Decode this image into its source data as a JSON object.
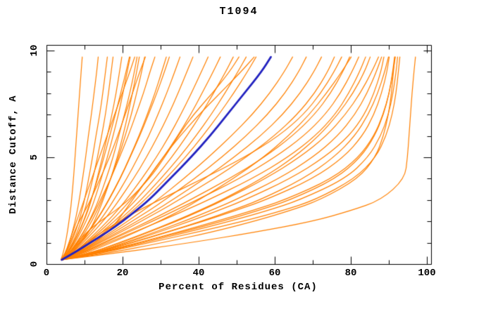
{
  "chart_data": {
    "type": "line",
    "title": "T1094",
    "xlabel": "Percent of Residues (CA)",
    "ylabel": "Distance Cutoff, A",
    "xlim": [
      0,
      101
    ],
    "ylim": [
      0,
      10.3
    ],
    "x_major_ticks": [
      0,
      20,
      40,
      60,
      80,
      100
    ],
    "x_minor_ticks": [
      10,
      30,
      50,
      70,
      90
    ],
    "y_major_ticks": [
      0,
      5,
      10
    ],
    "y_minor_ticks": [
      1,
      2,
      3,
      4,
      6,
      7,
      8,
      9
    ],
    "grid": "off",
    "legend": "none",
    "colors": {
      "model_line": "#ff8000",
      "highlight_line": "#2222c0",
      "axis": "#000000",
      "background": "#ffffff"
    },
    "distance_grid": [
      0.2,
      0.5,
      1,
      1.5,
      2,
      2.5,
      3,
      4,
      5,
      6,
      7,
      8,
      9,
      9.7
    ],
    "highlight_series": {
      "name": "highlighted-model",
      "values": [
        4.0,
        7.0,
        11.5,
        16.0,
        20.0,
        23.5,
        27.0,
        32.5,
        38.0,
        43.0,
        47.5,
        52.0,
        56.5,
        59.0
      ]
    },
    "series": [
      {
        "name": "model-01",
        "values": [
          3.8,
          4.4,
          5.0,
          5.5,
          5.9,
          6.3,
          6.6,
          7.1,
          7.5,
          7.9,
          8.3,
          8.7,
          9.1,
          9.4
        ]
      },
      {
        "name": "model-02",
        "values": [
          4.0,
          5.0,
          6.0,
          6.8,
          7.5,
          8.1,
          8.6,
          9.5,
          10.3,
          11.0,
          11.8,
          12.5,
          13.2,
          13.6
        ]
      },
      {
        "name": "model-03",
        "values": [
          4.0,
          5.1,
          6.5,
          7.6,
          8.5,
          9.3,
          10.0,
          11.1,
          12.1,
          13.0,
          14.0,
          14.8,
          15.5,
          16.0
        ]
      },
      {
        "name": "model-04",
        "values": [
          4.1,
          5.3,
          6.9,
          8.1,
          9.1,
          10.0,
          10.8,
          12.2,
          13.4,
          14.5,
          15.5,
          16.3,
          17.0,
          17.5
        ]
      },
      {
        "name": "model-05",
        "values": [
          3.9,
          5.5,
          7.2,
          8.6,
          9.8,
          10.9,
          11.8,
          13.3,
          14.7,
          16.0,
          17.2,
          18.3,
          19.2,
          19.8
        ]
      },
      {
        "name": "model-06",
        "values": [
          4.0,
          5.6,
          7.5,
          9.0,
          10.4,
          11.6,
          12.6,
          14.4,
          16.0,
          17.5,
          18.9,
          20.1,
          21.2,
          22.0
        ]
      },
      {
        "name": "model-07",
        "values": [
          4.2,
          6.0,
          8.0,
          9.8,
          11.2,
          12.5,
          13.7,
          15.7,
          17.5,
          19.0,
          20.5,
          21.9,
          23.1,
          23.8
        ]
      },
      {
        "name": "model-08",
        "values": [
          4.0,
          6.1,
          8.3,
          10.2,
          11.9,
          13.3,
          14.6,
          16.9,
          18.9,
          20.7,
          22.3,
          23.7,
          25.0,
          25.8
        ]
      },
      {
        "name": "model-09",
        "values": [
          3.8,
          5.0,
          6.2,
          7.3,
          8.6,
          10.1,
          11.6,
          14.1,
          16.6,
          18.7,
          20.7,
          22.6,
          24.5,
          26.0
        ]
      },
      {
        "name": "model-10",
        "values": [
          4.3,
          6.6,
          9.1,
          11.1,
          12.6,
          13.8,
          14.9,
          16.9,
          18.6,
          20.1,
          21.4,
          22.6,
          23.7,
          24.4
        ]
      },
      {
        "name": "model-11",
        "values": [
          3.9,
          4.9,
          5.9,
          6.9,
          7.9,
          8.9,
          9.9,
          11.9,
          13.9,
          15.9,
          17.9,
          19.9,
          21.9,
          23.2
        ]
      },
      {
        "name": "model-12",
        "values": [
          4.1,
          5.5,
          7.1,
          8.5,
          9.7,
          10.7,
          11.7,
          13.5,
          15.1,
          16.6,
          18.1,
          19.5,
          20.9,
          21.8
        ]
      },
      {
        "name": "model-13",
        "values": [
          4.0,
          6.2,
          8.8,
          11.0,
          13.0,
          14.8,
          16.4,
          19.4,
          22.0,
          24.5,
          26.8,
          29.0,
          31.0,
          32.3
        ]
      },
      {
        "name": "model-14",
        "values": [
          4.0,
          5.9,
          7.9,
          9.7,
          11.3,
          12.8,
          14.2,
          16.9,
          19.2,
          21.5,
          23.5,
          25.5,
          27.2,
          28.5
        ]
      },
      {
        "name": "model-15",
        "values": [
          4.0,
          6.1,
          8.6,
          10.9,
          12.9,
          14.7,
          16.3,
          19.3,
          21.9,
          24.3,
          26.5,
          28.5,
          30.3,
          31.5
        ]
      },
      {
        "name": "model-16",
        "values": [
          4.2,
          6.4,
          9.1,
          11.6,
          13.9,
          15.9,
          17.7,
          21.1,
          24.1,
          26.9,
          29.3,
          31.6,
          33.7,
          35.1
        ]
      },
      {
        "name": "model-17",
        "values": [
          4.0,
          6.6,
          9.6,
          12.3,
          14.8,
          17.1,
          19.1,
          22.9,
          26.3,
          29.3,
          32.1,
          34.6,
          36.9,
          38.5
        ]
      },
      {
        "name": "model-18",
        "values": [
          4.1,
          7.0,
          10.2,
          13.2,
          16.0,
          18.6,
          20.9,
          25.1,
          28.9,
          32.3,
          35.3,
          38.1,
          40.7,
          42.5
        ]
      },
      {
        "name": "model-19",
        "values": [
          4.0,
          7.1,
          10.6,
          13.9,
          16.9,
          19.6,
          22.1,
          26.7,
          30.7,
          34.5,
          37.9,
          40.9,
          43.8,
          45.7
        ]
      },
      {
        "name": "model-20",
        "values": [
          4.3,
          7.4,
          11.1,
          14.6,
          17.8,
          20.8,
          23.5,
          28.5,
          32.9,
          36.9,
          40.6,
          43.9,
          47.1,
          49.1
        ]
      },
      {
        "name": "model-21",
        "values": [
          4.0,
          7.5,
          11.6,
          15.3,
          18.7,
          21.9,
          24.8,
          30.1,
          34.9,
          39.3,
          43.3,
          46.9,
          50.3,
          52.5
        ]
      },
      {
        "name": "model-22",
        "values": [
          4.1,
          7.7,
          11.9,
          15.8,
          19.4,
          22.7,
          25.8,
          31.4,
          36.5,
          41.1,
          45.3,
          49.2,
          52.8,
          55.1
        ]
      },
      {
        "name": "model-23",
        "values": [
          3.9,
          6.0,
          8.1,
          10.6,
          14.1,
          18.1,
          21.6,
          27.1,
          31.1,
          34.6,
          38.6,
          43.6,
          48.1,
          50.6
        ]
      },
      {
        "name": "model-24",
        "values": [
          4.2,
          8.1,
          12.6,
          16.1,
          18.6,
          20.6,
          22.6,
          26.6,
          30.6,
          35.1,
          40.1,
          45.6,
          51.1,
          54.6
        ]
      },
      {
        "name": "model-25",
        "values": [
          4.0,
          7.9,
          12.6,
          17.1,
          21.3,
          25.3,
          29.1,
          36.1,
          42.6,
          48.6,
          54.1,
          58.7,
          62.5,
          64.7
        ]
      },
      {
        "name": "model-26",
        "values": [
          4.1,
          8.1,
          13.1,
          17.9,
          22.5,
          26.9,
          31.1,
          38.9,
          46.1,
          52.5,
          58.1,
          62.7,
          66.3,
          68.3
        ]
      },
      {
        "name": "model-27",
        "values": [
          4.0,
          8.3,
          13.6,
          18.8,
          23.8,
          28.6,
          33.1,
          41.6,
          49.3,
          56.3,
          62.1,
          66.7,
          70.3,
          72.3
        ]
      },
      {
        "name": "model-28",
        "values": [
          4.2,
          8.6,
          14.1,
          19.6,
          24.9,
          29.9,
          34.8,
          44.1,
          52.5,
          59.9,
          65.9,
          70.5,
          73.9,
          75.7
        ]
      },
      {
        "name": "model-29",
        "values": [
          3.9,
          7.1,
          10.6,
          14.6,
          19.1,
          24.1,
          29.6,
          41.1,
          52.1,
          61.1,
          67.6,
          72.1,
          75.6,
          77.6
        ]
      },
      {
        "name": "model-30",
        "values": [
          4.0,
          8.9,
          14.9,
          20.9,
          26.7,
          32.3,
          37.7,
          48.1,
          57.3,
          64.7,
          70.5,
          74.7,
          77.9,
          79.7
        ]
      },
      {
        "name": "model-31",
        "values": [
          4.1,
          9.1,
          15.3,
          21.6,
          27.8,
          33.7,
          39.5,
          50.7,
          60.1,
          67.7,
          73.3,
          77.3,
          80.3,
          82.1
        ]
      },
      {
        "name": "model-32",
        "values": [
          4.0,
          10.1,
          17.1,
          23.6,
          29.6,
          35.1,
          40.1,
          49.1,
          57.1,
          63.6,
          69.1,
          73.6,
          77.6,
          80.1
        ]
      },
      {
        "name": "model-33",
        "values": [
          4.2,
          9.4,
          16.1,
          23.1,
          29.8,
          36.3,
          42.5,
          54.1,
          63.5,
          70.7,
          75.9,
          79.5,
          82.3,
          83.9
        ]
      },
      {
        "name": "model-34",
        "values": [
          4.0,
          11.1,
          19.1,
          26.6,
          33.6,
          40.1,
          46.1,
          56.6,
          65.1,
          71.6,
          76.6,
          80.6,
          83.6,
          85.1
        ]
      },
      {
        "name": "model-35",
        "values": [
          4.1,
          12.1,
          21.1,
          29.6,
          37.6,
          45.1,
          52.1,
          64.1,
          73.1,
          79.6,
          83.6,
          86.1,
          87.9,
          88.7
        ]
      },
      {
        "name": "model-36",
        "values": [
          4.0,
          12.6,
          22.6,
          32.1,
          41.1,
          49.6,
          57.6,
          70.1,
          78.1,
          83.1,
          86.1,
          88.1,
          89.5,
          90.1
        ]
      },
      {
        "name": "model-37",
        "values": [
          4.2,
          13.1,
          24.1,
          34.6,
          44.6,
          54.1,
          62.6,
          75.1,
          82.1,
          86.1,
          88.5,
          90.1,
          91.1,
          91.7
        ]
      },
      {
        "name": "model-38",
        "values": [
          4.0,
          13.6,
          25.6,
          37.1,
          48.1,
          58.1,
          66.6,
          78.6,
          84.6,
          87.9,
          89.9,
          91.1,
          91.9,
          92.3
        ]
      },
      {
        "name": "model-39",
        "values": [
          4.1,
          14.1,
          27.1,
          39.6,
          51.6,
          62.1,
          70.6,
          81.1,
          86.6,
          89.3,
          90.9,
          91.9,
          92.5,
          92.9
        ]
      },
      {
        "name": "model-40",
        "values": [
          4.0,
          12.1,
          22.1,
          31.6,
          40.6,
          48.6,
          56.1,
          67.6,
          75.6,
          81.1,
          84.6,
          87.1,
          88.9,
          89.9
        ]
      },
      {
        "name": "model-41",
        "values": [
          3.9,
          11.6,
          20.6,
          28.6,
          36.1,
          43.1,
          49.6,
          61.1,
          70.1,
          76.6,
          81.1,
          84.3,
          86.7,
          88.1
        ]
      },
      {
        "name": "model-42",
        "values": [
          4.0,
          11.1,
          19.6,
          27.1,
          34.1,
          40.6,
          46.6,
          57.6,
          66.6,
          73.6,
          78.6,
          82.5,
          85.5,
          87.3
        ]
      },
      {
        "name": "model-43",
        "values": [
          4.1,
          13.1,
          24.6,
          35.6,
          46.1,
          55.6,
          64.1,
          76.1,
          82.6,
          86.3,
          88.6,
          90.1,
          91.0,
          91.5
        ]
      },
      {
        "name": "model-44",
        "values": [
          4.0,
          18.0,
          38.0,
          55.0,
          70.0,
          80.0,
          88.0,
          94.2,
          94.9,
          95.3,
          95.7,
          96.1,
          96.6,
          97.0
        ]
      },
      {
        "name": "model-45",
        "values": [
          4.0,
          16.0,
          30.5,
          43.5,
          54.5,
          64.0,
          72.0,
          82.0,
          86.5,
          88.6,
          89.9,
          90.7,
          91.2,
          91.6
        ]
      }
    ]
  }
}
